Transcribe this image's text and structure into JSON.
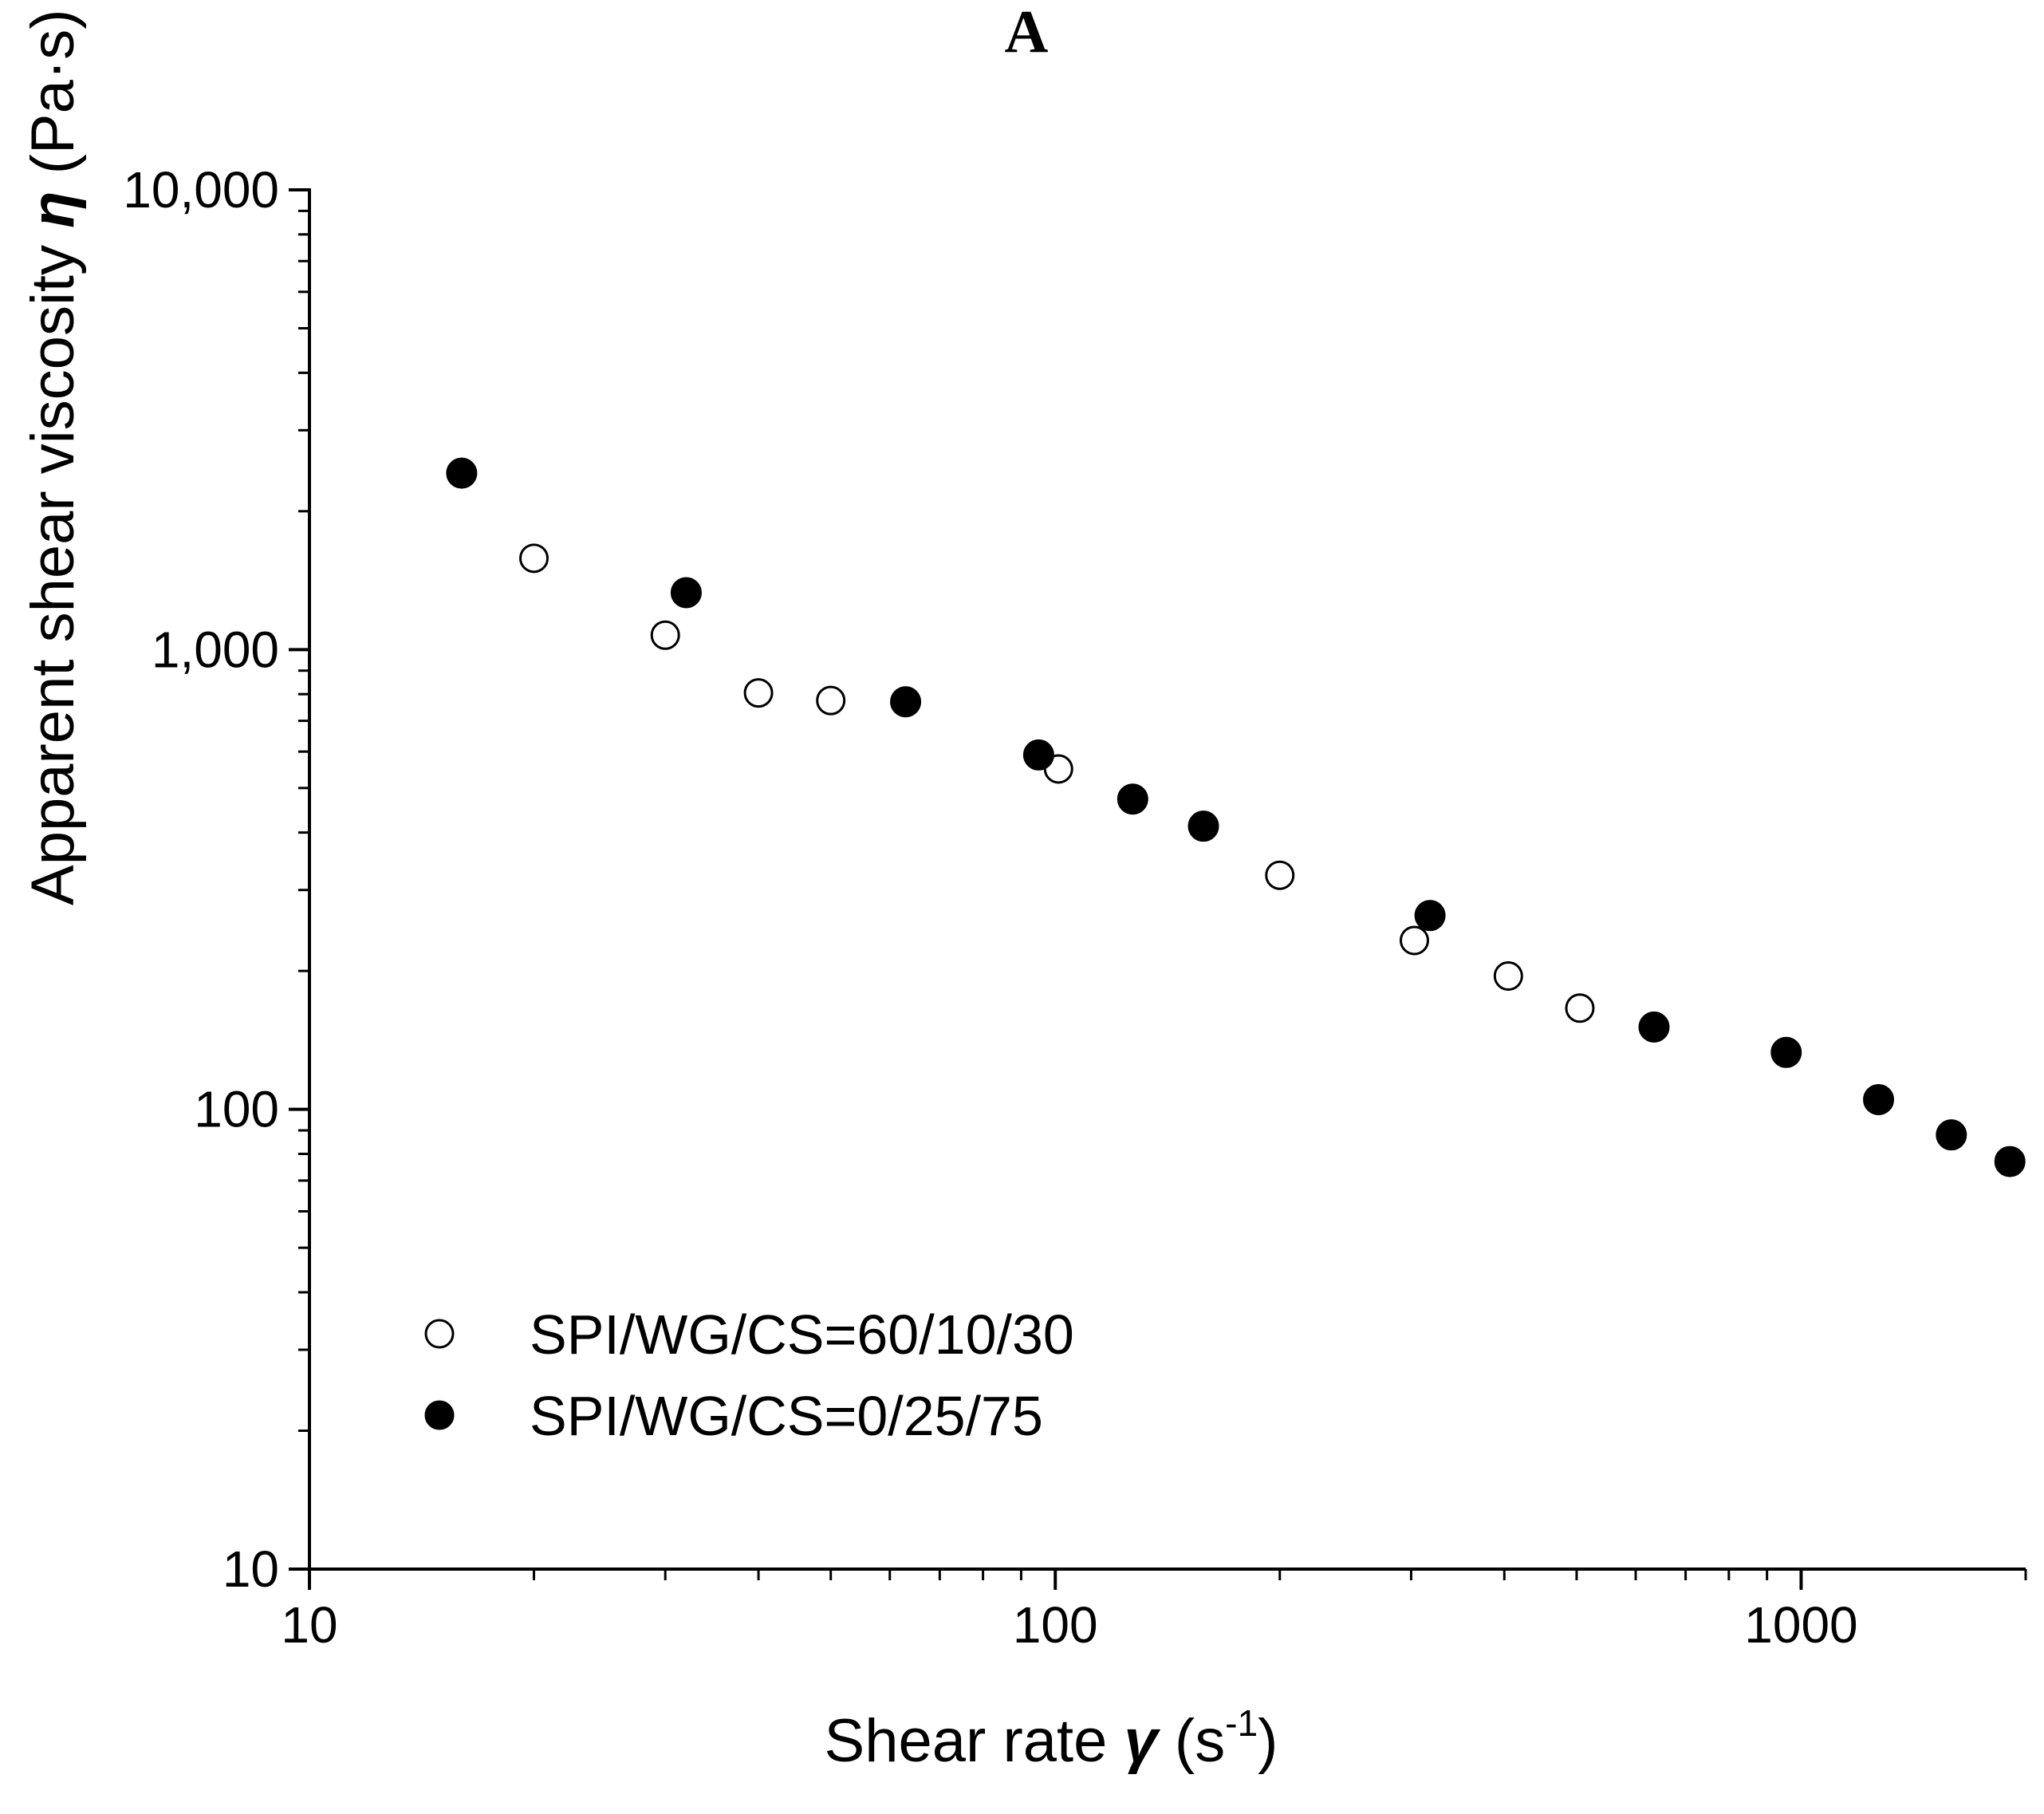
{
  "chart_data": {
    "type": "scatter",
    "panel_label": "A",
    "x_scale": "log",
    "y_scale": "log",
    "xlim": [
      10,
      2000
    ],
    "ylim": [
      10,
      10000
    ],
    "x_ticks": [
      {
        "value": 10,
        "label": "10"
      },
      {
        "value": 100,
        "label": "100"
      },
      {
        "value": 1000,
        "label": "1000"
      }
    ],
    "y_ticks": [
      {
        "value": 10,
        "label": "10"
      },
      {
        "value": 100,
        "label": "100"
      },
      {
        "value": 1000,
        "label": "1,000"
      },
      {
        "value": 10000,
        "label": "10,000"
      }
    ],
    "xlabel": {
      "prefix": "Shear rate ",
      "symbol": "γ",
      "unit_open": " (s",
      "superscript": "-1",
      "unit_close": ")"
    },
    "ylabel": {
      "prefix": "Apparent shear viscosity ",
      "symbol": "η",
      "unit": " (Pa·s)"
    },
    "legend_position": "bottom-left",
    "series": [
      {
        "name": "SPI/WG/CS=60/10/30",
        "marker": "open-circle",
        "points": [
          {
            "x": 20,
            "y": 1580
          },
          {
            "x": 30,
            "y": 1075
          },
          {
            "x": 40,
            "y": 805
          },
          {
            "x": 50,
            "y": 775
          },
          {
            "x": 101,
            "y": 550
          },
          {
            "x": 200,
            "y": 323
          },
          {
            "x": 303,
            "y": 233
          },
          {
            "x": 405,
            "y": 195
          },
          {
            "x": 505,
            "y": 166
          }
        ]
      },
      {
        "name": "SPI/WG/CS=0/25/75",
        "marker": "filled-circle",
        "points": [
          {
            "x": 16,
            "y": 2420
          },
          {
            "x": 32,
            "y": 1330
          },
          {
            "x": 63,
            "y": 770
          },
          {
            "x": 95,
            "y": 590
          },
          {
            "x": 127,
            "y": 473
          },
          {
            "x": 158,
            "y": 413
          },
          {
            "x": 318,
            "y": 264
          },
          {
            "x": 635,
            "y": 151
          },
          {
            "x": 955,
            "y": 133
          },
          {
            "x": 1270,
            "y": 105
          },
          {
            "x": 1590,
            "y": 88
          },
          {
            "x": 1905,
            "y": 77
          }
        ]
      }
    ]
  }
}
